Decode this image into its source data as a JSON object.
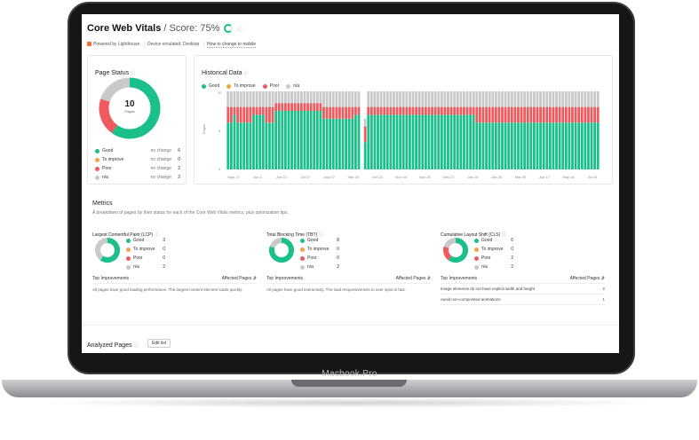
{
  "device_label": "Macbook Pro",
  "header": {
    "title": "Core Web Vitals",
    "score_label": "/ Score: 75%",
    "score_fraction": 0.75
  },
  "subheader": {
    "powered_by": "Powered by Lighthouse",
    "device": "Device emulated: Desktop",
    "link": "How to change to mobile"
  },
  "page_status": {
    "title": "Page Status",
    "total": "10",
    "total_label": "Pages",
    "rows": [
      {
        "label": "Good",
        "change": "no change",
        "value": "6",
        "color": "#1bbf8a"
      },
      {
        "label": "To improve",
        "change": "no change",
        "value": "0",
        "color": "#f7a241"
      },
      {
        "label": "Poor",
        "change": "no change",
        "value": "2",
        "color": "#ef5a5f"
      },
      {
        "label": "n/a",
        "change": "no change",
        "value": "2",
        "color": "#c9c9cc"
      }
    ]
  },
  "historical": {
    "title": "Historical Data",
    "legend": [
      {
        "label": "Good",
        "color": "#1bbf8a"
      },
      {
        "label": "To improve",
        "color": "#f7a241"
      },
      {
        "label": "Poor",
        "color": "#ef5a5f"
      },
      {
        "label": "n/a",
        "color": "#c9c9cc"
      }
    ],
    "y_ticks": [
      "10",
      "5",
      "0"
    ],
    "y_label": "Pages",
    "x_ticks": [
      "May 17",
      "Jun 1",
      "Jun 22",
      "Jul 07",
      "Aug 07",
      "Sep 19",
      "Oct 13",
      "Nov 04",
      "Nov 25",
      "Dec 27",
      "Jan 16",
      "Jan 25",
      "Mar 20",
      "Apr 17",
      "May 16",
      "Jul 15"
    ]
  },
  "chart_data": {
    "type": "bar",
    "stacked": true,
    "ylim": [
      0,
      10
    ],
    "series_names": [
      "Good",
      "To improve",
      "Poor",
      "n/a"
    ],
    "segments": [
      {
        "count": 2,
        "values": [
          6,
          0,
          2,
          2
        ]
      },
      {
        "count": 1,
        "values": [
          7,
          0,
          1,
          2
        ]
      },
      {
        "count": 5,
        "values": [
          6,
          0,
          2,
          2
        ]
      },
      {
        "count": 4,
        "values": [
          7,
          0,
          1,
          2
        ]
      },
      {
        "count": 3,
        "values": [
          6,
          0,
          2,
          2
        ]
      },
      {
        "count": 15,
        "values": [
          7.5,
          0,
          1,
          1.5
        ]
      },
      {
        "count": 10,
        "values": [
          6.5,
          0,
          1.5,
          2
        ]
      },
      {
        "count": 2,
        "values": [
          7,
          0,
          1,
          2
        ]
      },
      {
        "count": 1,
        "values": [
          0,
          0,
          0,
          0
        ]
      },
      {
        "count": 1,
        "values": [
          3.5,
          0,
          2,
          1
        ]
      },
      {
        "count": 2,
        "values": [
          7,
          0,
          1,
          2
        ]
      },
      {
        "count": 32,
        "values": [
          7,
          0,
          1,
          2
        ]
      },
      {
        "count": 39,
        "values": [
          6,
          0,
          2,
          2
        ]
      }
    ]
  },
  "metrics": {
    "title": "Metrics",
    "description": "A breakdown of pages by their status for each of the Core Web Vitals metrics, plus optimization tips.",
    "items": [
      {
        "title": "Largest Contentful Paint (LCP)",
        "rows": [
          {
            "label": "Good",
            "value": "3",
            "color": "#1bbf8a"
          },
          {
            "label": "To improve",
            "value": "0",
            "color": "#f7a241"
          },
          {
            "label": "Poor",
            "value": "0",
            "color": "#ef5a5f"
          },
          {
            "label": "n/a",
            "value": "2",
            "color": "#c9c9cc"
          }
        ],
        "ti_label": "Top Improvements",
        "ap_label": "Affected Pages",
        "text": "All pages have good loading performance. The largest content element loads quickly.",
        "tips": []
      },
      {
        "title": "Total Blocking Time (TBT)",
        "rows": [
          {
            "label": "Good",
            "value": "8",
            "color": "#1bbf8a"
          },
          {
            "label": "To improve",
            "value": "0",
            "color": "#f7a241"
          },
          {
            "label": "Poor",
            "value": "0",
            "color": "#ef5a5f"
          },
          {
            "label": "n/a",
            "value": "2",
            "color": "#c9c9cc"
          }
        ],
        "ti_label": "Top Improvements",
        "ap_label": "Affected Pages",
        "text": "All pages have good interactivity. The load responsiveness to user input is fast.",
        "tips": []
      },
      {
        "title": "Cumulative Layout Shift (CLS)",
        "rows": [
          {
            "label": "Good",
            "value": "6",
            "color": "#1bbf8a"
          },
          {
            "label": "To improve",
            "value": "0",
            "color": "#f7a241"
          },
          {
            "label": "Poor",
            "value": "2",
            "color": "#ef5a5f"
          },
          {
            "label": "n/a",
            "value": "2",
            "color": "#c9c9cc"
          }
        ],
        "ti_label": "Top Improvements",
        "ap_label": "Affected Pages",
        "text": "",
        "tips": [
          {
            "text": "Image elements do not have explicit width and height",
            "count": "2"
          },
          {
            "text": "Avoid non-composited animations",
            "count": "1"
          }
        ]
      }
    ]
  },
  "analyzed": {
    "title": "Analyzed Pages",
    "edit_label": "Edit list"
  }
}
